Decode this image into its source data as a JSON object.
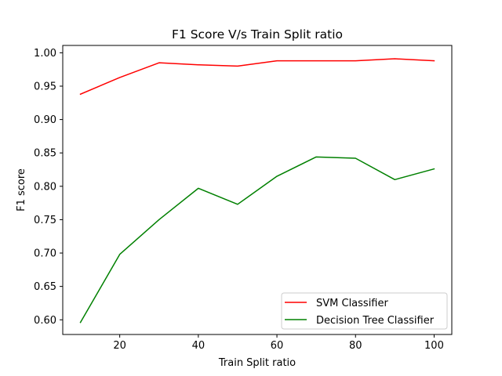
{
  "chart_data": {
    "type": "line",
    "title": "F1 Score V/s Train Split ratio",
    "xlabel": "Train Split ratio",
    "ylabel": "F1 score",
    "xlim": [
      5.5,
      104.5
    ],
    "ylim": [
      0.578,
      1.011
    ],
    "xticks": [
      20,
      40,
      60,
      80,
      100
    ],
    "yticks": [
      0.6,
      0.65,
      0.7,
      0.75,
      0.8,
      0.85,
      0.9,
      0.95,
      1.0
    ],
    "grid": false,
    "legend_position": "lower-right",
    "x": [
      10,
      20,
      30,
      40,
      50,
      60,
      70,
      80,
      90,
      100
    ],
    "series": [
      {
        "name": "SVM Classifier",
        "color": "#ff0000",
        "values": [
          0.938,
          0.963,
          0.985,
          0.982,
          0.98,
          0.988,
          0.988,
          0.988,
          0.991,
          0.988
        ]
      },
      {
        "name": "Decision Tree Classifier",
        "color": "#008000",
        "values": [
          0.596,
          0.698,
          0.75,
          0.797,
          0.773,
          0.815,
          0.844,
          0.842,
          0.81,
          0.826
        ]
      }
    ]
  }
}
